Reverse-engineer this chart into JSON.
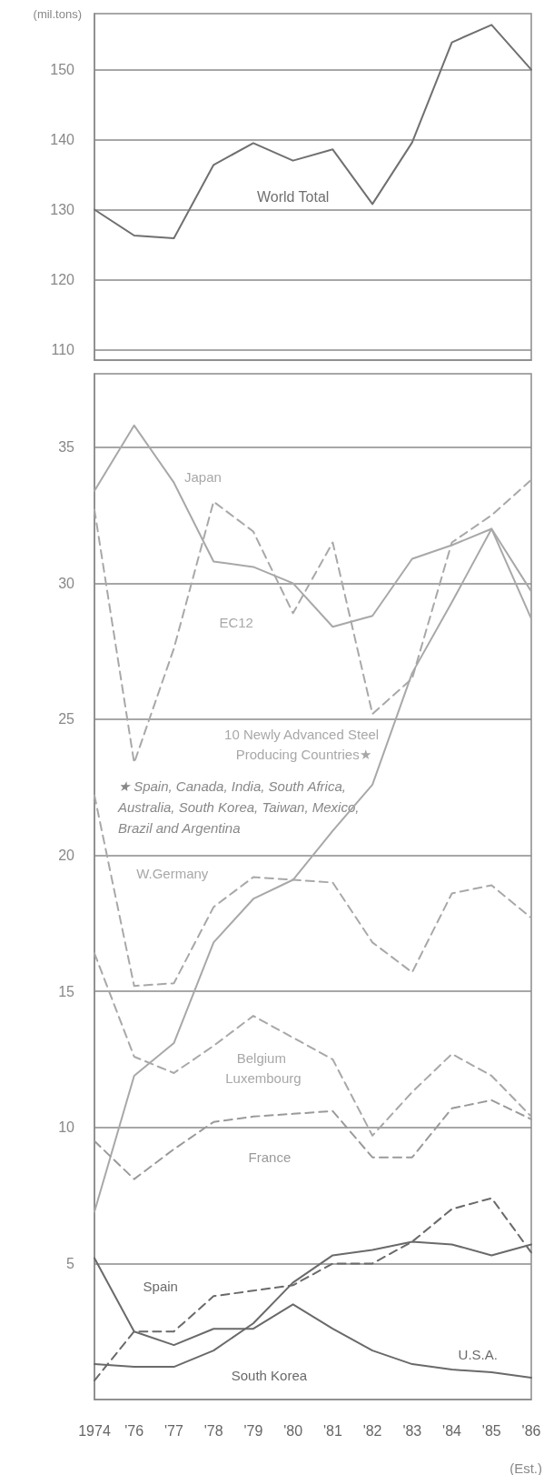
{
  "chart_data": [
    {
      "type": "line",
      "ylabel": "(mil.tons)",
      "categories": [
        null,
        null,
        null,
        null,
        null,
        null,
        null,
        null,
        null,
        null,
        null,
        null
      ],
      "series": [
        {
          "name": "World Total",
          "color": "#707070",
          "line_style": "solid",
          "values": [
            130,
            126.3,
            125.9,
            136.4,
            139.5,
            137.0,
            138.6,
            130.8,
            139.6,
            153.9,
            156.4,
            150
          ]
        }
      ],
      "ylim": [
        108.5,
        158
      ],
      "yticks": [
        110,
        120,
        130,
        140,
        150
      ],
      "grid": "y",
      "tick_labels": "y",
      "marker": "none"
    },
    {
      "type": "line",
      "categories": [
        "1974",
        "'76",
        "'77",
        "'78",
        "'79",
        "'80",
        "'81",
        "'82",
        "'83",
        "'84",
        "'85",
        "'86"
      ],
      "series": [
        {
          "name": "Japan",
          "color": "#a8a8a8",
          "line_style": "solid",
          "values": [
            33.4,
            35.8,
            33.7,
            30.8,
            30.6,
            30.0,
            28.4,
            28.8,
            30.9,
            31.4,
            32.0,
            28.7
          ]
        },
        {
          "name": "EC12",
          "color": "#a8a8a8",
          "line_style": "dashed",
          "values": [
            32.7,
            23.4,
            27.6,
            33.0,
            31.9,
            28.9,
            31.5,
            25.2,
            26.5,
            31.5,
            32.5,
            33.8
          ]
        },
        {
          "name": "10 Newly Advanced Steel Producing Countries★",
          "color": "#a8a8a8",
          "line_style": "solid",
          "values": [
            6.9,
            11.9,
            13.1,
            16.8,
            18.4,
            19.1,
            20.9,
            22.6,
            26.7,
            29.3,
            32.0,
            29.7
          ]
        },
        {
          "name": "W.Germany",
          "color": "#a8a8a8",
          "line_style": "dashed",
          "values": [
            22.2,
            15.2,
            15.3,
            18.1,
            19.2,
            19.1,
            19.0,
            16.8,
            15.7,
            18.6,
            18.9,
            17.7
          ]
        },
        {
          "name": "Belgium Luxembourg",
          "color": "#a8a8a8",
          "line_style": "dashed",
          "values": [
            16.4,
            12.6,
            12.0,
            13.0,
            14.1,
            13.3,
            12.5,
            9.7,
            11.3,
            12.7,
            11.9,
            10.4
          ]
        },
        {
          "name": "France",
          "color": "#9a9a9a",
          "line_style": "dashed",
          "values": [
            9.5,
            8.1,
            9.2,
            10.2,
            10.4,
            10.5,
            10.6,
            8.9,
            8.9,
            10.7,
            11.0,
            10.3
          ]
        },
        {
          "name": "Spain",
          "color": "#6a6a6a",
          "line_style": "dashed",
          "values": [
            0.7,
            2.5,
            2.5,
            3.8,
            4.0,
            4.2,
            5.0,
            5.0,
            5.8,
            7.0,
            7.4,
            5.4
          ]
        },
        {
          "name": "U.S.A.",
          "color": "#6a6a6a",
          "line_style": "solid",
          "values": [
            5.2,
            2.5,
            2.0,
            2.6,
            2.6,
            3.5,
            2.6,
            1.8,
            1.3,
            1.1,
            1.0,
            0.8
          ]
        },
        {
          "name": "South Korea",
          "color": "#6a6a6a",
          "line_style": "solid",
          "values": [
            1.3,
            1.2,
            1.2,
            1.8,
            2.8,
            4.3,
            5.3,
            5.5,
            5.8,
            5.7,
            5.3,
            5.7
          ]
        }
      ],
      "ylim": [
        0,
        37.7
      ],
      "yticks": [
        5,
        10,
        15,
        20,
        25,
        30,
        35
      ],
      "grid": "y",
      "marker": "none",
      "annotations": [
        "★ Spain, Canada, India, South Africa, Australia, South Korea, Taiwan, Mexico, Brazil and Argentina",
        "(Est.)"
      ]
    }
  ]
}
